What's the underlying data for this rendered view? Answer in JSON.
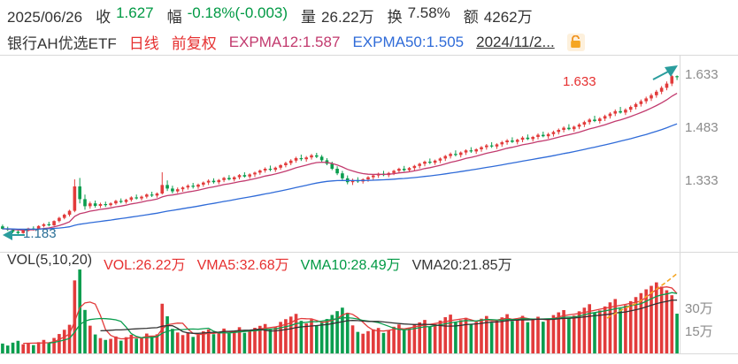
{
  "header": {
    "date": "2025/06/26",
    "close_label": "收",
    "close_value": "1.627",
    "change_label": "幅",
    "change_value": "-0.18%(-0.003)",
    "volume_label": "量",
    "volume_value": "26.22万",
    "turnover_label": "换",
    "turnover_value": "7.58%",
    "amount_label": "额",
    "amount_value": "4262万"
  },
  "subheader": {
    "name": "银行AH优选ETF",
    "period": "日线",
    "adjust": "前复权",
    "expma12": "EXPMA12:1.587",
    "expma50": "EXPMA50:1.505",
    "range_date": "2024/11/2...",
    "lock_icon": "lock-icon"
  },
  "price_axis": {
    "labels": [
      "1.633",
      "1.483",
      "1.333"
    ]
  },
  "annotations": {
    "low_label": "1.183",
    "high_label": "1.633"
  },
  "vol_header": {
    "title": "VOL(5,10,20)",
    "vol": "VOL:26.22万",
    "vma5": "VMA5:32.68万",
    "vma10": "VMA10:28.49万",
    "vma20": "VMA20:21.85万"
  },
  "vol_axis": {
    "labels": [
      "30万",
      "15万"
    ]
  },
  "colors": {
    "up": "#e23b3b",
    "down": "#0a9d4e",
    "expma12": "#c23a6e",
    "expma50": "#2f6bd8",
    "vma5": "#e23b3b",
    "vma10": "#0a9d4e",
    "vma20": "#333333",
    "accent_teal": "#2a9d9d",
    "accent_orange": "#f5a623"
  },
  "chart_data": {
    "type": "candlestick+volume",
    "title": "银行AH优选ETF 日线 前复权",
    "legend": [
      "EXPMA12",
      "EXPMA50",
      "VOL",
      "VMA5",
      "VMA10",
      "VMA20"
    ],
    "y_ticks_price": [
      1.633,
      1.483,
      1.333,
      1.183
    ],
    "y_ticks_volume_wan": [
      30,
      15
    ],
    "price_view_range": [
      1.133,
      1.6905
    ],
    "volume_view_range_wan": [
      0,
      56
    ],
    "low_marker": 1.183,
    "high_marker": 1.633,
    "last_close": 1.627,
    "last_change_pct": -0.18,
    "candles_ohlcv": [
      [
        1.205,
        1.21,
        1.196,
        1.198,
        6.5
      ],
      [
        1.198,
        1.204,
        1.192,
        1.195,
        5.2
      ],
      [
        1.195,
        1.199,
        1.186,
        1.19,
        7.1
      ],
      [
        1.19,
        1.196,
        1.183,
        1.186,
        8.3
      ],
      [
        1.186,
        1.195,
        1.184,
        1.193,
        6.0
      ],
      [
        1.193,
        1.201,
        1.19,
        1.199,
        6.8
      ],
      [
        1.199,
        1.205,
        1.193,
        1.196,
        5.5
      ],
      [
        1.196,
        1.208,
        1.195,
        1.206,
        7.4
      ],
      [
        1.206,
        1.214,
        1.202,
        1.211,
        8.9
      ],
      [
        1.211,
        1.218,
        1.205,
        1.208,
        6.7
      ],
      [
        1.208,
        1.222,
        1.206,
        1.22,
        10.2
      ],
      [
        1.22,
        1.232,
        1.216,
        1.229,
        12.8
      ],
      [
        1.229,
        1.241,
        1.225,
        1.238,
        15.6
      ],
      [
        1.238,
        1.252,
        1.233,
        1.249,
        18.9
      ],
      [
        1.249,
        1.338,
        1.245,
        1.318,
        48.2
      ],
      [
        1.318,
        1.342,
        1.27,
        1.282,
        55.4
      ],
      [
        1.282,
        1.295,
        1.252,
        1.262,
        28.7
      ],
      [
        1.262,
        1.275,
        1.255,
        1.27,
        18.3
      ],
      [
        1.27,
        1.278,
        1.258,
        1.263,
        12.5
      ],
      [
        1.263,
        1.272,
        1.257,
        1.268,
        10.1
      ],
      [
        1.268,
        1.275,
        1.26,
        1.265,
        8.9
      ],
      [
        1.265,
        1.273,
        1.261,
        1.27,
        9.6
      ],
      [
        1.27,
        1.28,
        1.266,
        1.277,
        11.2
      ],
      [
        1.277,
        1.284,
        1.27,
        1.274,
        8.4
      ],
      [
        1.274,
        1.283,
        1.269,
        1.28,
        10.7
      ],
      [
        1.28,
        1.29,
        1.275,
        1.287,
        12.3
      ],
      [
        1.287,
        1.295,
        1.281,
        1.284,
        9.8
      ],
      [
        1.284,
        1.292,
        1.278,
        1.289,
        10.5
      ],
      [
        1.289,
        1.298,
        1.284,
        1.295,
        13.1
      ],
      [
        1.295,
        1.303,
        1.288,
        1.292,
        11.4
      ],
      [
        1.292,
        1.301,
        1.286,
        1.298,
        12.6
      ],
      [
        1.298,
        1.358,
        1.295,
        1.322,
        32.8
      ],
      [
        1.322,
        1.335,
        1.305,
        1.312,
        24.5
      ],
      [
        1.312,
        1.32,
        1.298,
        1.304,
        16.2
      ],
      [
        1.304,
        1.315,
        1.299,
        1.31,
        13.8
      ],
      [
        1.31,
        1.318,
        1.303,
        1.315,
        12.1
      ],
      [
        1.315,
        1.324,
        1.309,
        1.32,
        13.4
      ],
      [
        1.32,
        1.328,
        1.312,
        1.317,
        10.9
      ],
      [
        1.317,
        1.326,
        1.311,
        1.323,
        12.2
      ],
      [
        1.323,
        1.332,
        1.317,
        1.329,
        14.6
      ],
      [
        1.329,
        1.338,
        1.322,
        1.334,
        15.8
      ],
      [
        1.334,
        1.341,
        1.326,
        1.33,
        12.7
      ],
      [
        1.33,
        1.339,
        1.324,
        1.336,
        13.9
      ],
      [
        1.336,
        1.345,
        1.33,
        1.342,
        16.4
      ],
      [
        1.342,
        1.35,
        1.335,
        1.338,
        13.2
      ],
      [
        1.338,
        1.347,
        1.332,
        1.344,
        14.8
      ],
      [
        1.344,
        1.353,
        1.338,
        1.35,
        17.3
      ],
      [
        1.35,
        1.358,
        1.343,
        1.346,
        13.6
      ],
      [
        1.346,
        1.355,
        1.34,
        1.352,
        15.1
      ],
      [
        1.352,
        1.36,
        1.345,
        1.357,
        16.9
      ],
      [
        1.357,
        1.366,
        1.351,
        1.363,
        18.2
      ],
      [
        1.363,
        1.372,
        1.357,
        1.368,
        19.4
      ],
      [
        1.368,
        1.377,
        1.361,
        1.365,
        15.7
      ],
      [
        1.365,
        1.374,
        1.359,
        1.371,
        17.2
      ],
      [
        1.371,
        1.381,
        1.365,
        1.378,
        20.8
      ],
      [
        1.378,
        1.388,
        1.372,
        1.384,
        22.6
      ],
      [
        1.384,
        1.395,
        1.378,
        1.391,
        24.3
      ],
      [
        1.391,
        1.402,
        1.385,
        1.398,
        26.1
      ],
      [
        1.398,
        1.408,
        1.39,
        1.395,
        21.5
      ],
      [
        1.395,
        1.404,
        1.388,
        1.4,
        19.8
      ],
      [
        1.4,
        1.41,
        1.394,
        1.406,
        22.4
      ],
      [
        1.406,
        1.413,
        1.398,
        1.402,
        18.6
      ],
      [
        1.402,
        1.407,
        1.388,
        1.392,
        20.3
      ],
      [
        1.392,
        1.398,
        1.378,
        1.382,
        22.7
      ],
      [
        1.382,
        1.388,
        1.364,
        1.368,
        25.4
      ],
      [
        1.368,
        1.375,
        1.35,
        1.355,
        27.9
      ],
      [
        1.355,
        1.362,
        1.336,
        1.341,
        30.2
      ],
      [
        1.341,
        1.349,
        1.324,
        1.33,
        26.8
      ],
      [
        1.33,
        1.34,
        1.322,
        1.336,
        18.5
      ],
      [
        1.336,
        1.344,
        1.328,
        1.332,
        14.2
      ],
      [
        1.332,
        1.341,
        1.326,
        1.338,
        13.0
      ],
      [
        1.338,
        1.347,
        1.331,
        1.344,
        14.7
      ],
      [
        1.344,
        1.352,
        1.337,
        1.349,
        15.9
      ],
      [
        1.349,
        1.357,
        1.342,
        1.354,
        16.8
      ],
      [
        1.354,
        1.362,
        1.347,
        1.35,
        13.5
      ],
      [
        1.35,
        1.359,
        1.344,
        1.356,
        15.2
      ],
      [
        1.356,
        1.365,
        1.35,
        1.362,
        17.6
      ],
      [
        1.362,
        1.371,
        1.355,
        1.368,
        19.1
      ],
      [
        1.368,
        1.376,
        1.36,
        1.364,
        15.4
      ],
      [
        1.364,
        1.373,
        1.358,
        1.37,
        16.7
      ],
      [
        1.37,
        1.379,
        1.363,
        1.376,
        18.9
      ],
      [
        1.376,
        1.385,
        1.369,
        1.382,
        20.5
      ],
      [
        1.382,
        1.391,
        1.375,
        1.388,
        22.1
      ],
      [
        1.388,
        1.397,
        1.381,
        1.385,
        17.8
      ],
      [
        1.385,
        1.394,
        1.379,
        1.391,
        19.3
      ],
      [
        1.391,
        1.4,
        1.384,
        1.397,
        21.7
      ],
      [
        1.397,
        1.407,
        1.39,
        1.404,
        23.9
      ],
      [
        1.404,
        1.414,
        1.397,
        1.41,
        25.6
      ],
      [
        1.41,
        1.42,
        1.403,
        1.407,
        20.4
      ],
      [
        1.407,
        1.417,
        1.4,
        1.414,
        22.0
      ],
      [
        1.414,
        1.423,
        1.407,
        1.42,
        23.5
      ],
      [
        1.42,
        1.429,
        1.413,
        1.417,
        19.2
      ],
      [
        1.417,
        1.426,
        1.41,
        1.423,
        20.8
      ],
      [
        1.423,
        1.432,
        1.416,
        1.429,
        22.9
      ],
      [
        1.429,
        1.438,
        1.422,
        1.434,
        24.7
      ],
      [
        1.434,
        1.443,
        1.427,
        1.431,
        20.1
      ],
      [
        1.431,
        1.44,
        1.424,
        1.437,
        21.6
      ],
      [
        1.437,
        1.447,
        1.43,
        1.443,
        23.8
      ],
      [
        1.443,
        1.452,
        1.436,
        1.448,
        25.9
      ],
      [
        1.448,
        1.457,
        1.441,
        1.444,
        21.3
      ],
      [
        1.444,
        1.453,
        1.437,
        1.45,
        22.5
      ],
      [
        1.45,
        1.46,
        1.443,
        1.456,
        24.8
      ],
      [
        1.456,
        1.465,
        1.449,
        1.452,
        20.6
      ],
      [
        1.452,
        1.461,
        1.445,
        1.458,
        21.9
      ],
      [
        1.458,
        1.468,
        1.451,
        1.464,
        24.2
      ],
      [
        1.464,
        1.473,
        1.457,
        1.46,
        20.9
      ],
      [
        1.46,
        1.47,
        1.453,
        1.466,
        22.7
      ],
      [
        1.466,
        1.476,
        1.459,
        1.472,
        25.3
      ],
      [
        1.472,
        1.482,
        1.465,
        1.478,
        27.1
      ],
      [
        1.478,
        1.488,
        1.471,
        1.484,
        28.6
      ],
      [
        1.484,
        1.494,
        1.477,
        1.48,
        23.4
      ],
      [
        1.48,
        1.49,
        1.473,
        1.487,
        25.0
      ],
      [
        1.487,
        1.497,
        1.48,
        1.493,
        27.8
      ],
      [
        1.493,
        1.504,
        1.486,
        1.5,
        30.2
      ],
      [
        1.5,
        1.511,
        1.493,
        1.507,
        32.5
      ],
      [
        1.507,
        1.518,
        1.5,
        1.503,
        26.8
      ],
      [
        1.503,
        1.514,
        1.496,
        1.51,
        28.4
      ],
      [
        1.51,
        1.521,
        1.503,
        1.517,
        31.0
      ],
      [
        1.517,
        1.528,
        1.51,
        1.524,
        33.7
      ],
      [
        1.524,
        1.536,
        1.517,
        1.531,
        35.9
      ],
      [
        1.531,
        1.543,
        1.524,
        1.527,
        29.6
      ],
      [
        1.527,
        1.539,
        1.52,
        1.535,
        31.8
      ],
      [
        1.535,
        1.547,
        1.528,
        1.543,
        34.5
      ],
      [
        1.543,
        1.555,
        1.536,
        1.551,
        37.2
      ],
      [
        1.551,
        1.564,
        1.544,
        1.559,
        39.8
      ],
      [
        1.559,
        1.572,
        1.552,
        1.567,
        42.3
      ],
      [
        1.567,
        1.581,
        1.56,
        1.576,
        44.6
      ],
      [
        1.576,
        1.591,
        1.569,
        1.586,
        46.9
      ],
      [
        1.586,
        1.602,
        1.579,
        1.597,
        44.1
      ],
      [
        1.597,
        1.615,
        1.59,
        1.609,
        41.7
      ],
      [
        1.609,
        1.633,
        1.602,
        1.63,
        38.4
      ],
      [
        1.63,
        1.632,
        1.619,
        1.627,
        26.22
      ]
    ]
  }
}
